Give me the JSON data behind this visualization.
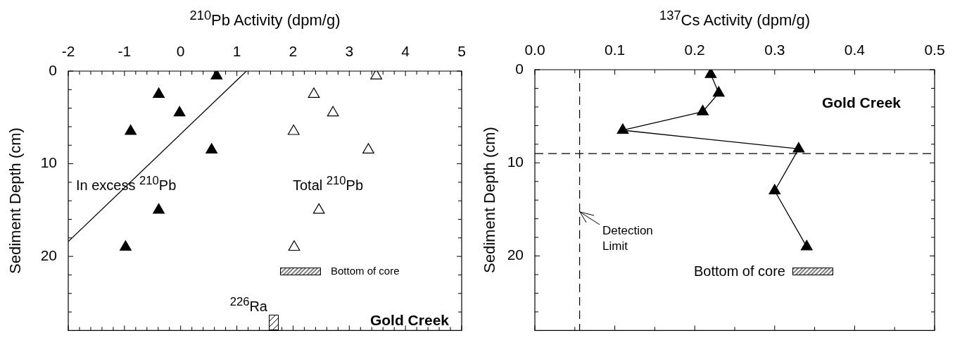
{
  "chart_data": [
    {
      "type": "scatter",
      "xlabel": "$^{210}$Pb Activity (dpm/g)",
      "ylabel": "Sediment Depth (cm)",
      "xlim": [
        -2,
        5
      ],
      "ylim": [
        28,
        0
      ],
      "marker": "triangle",
      "xticks": [
        -2,
        {
          "value": -1.8,
          "label": null
        },
        {
          "value": -1.6,
          "label": null
        },
        {
          "value": -1.4,
          "label": null
        },
        {
          "value": -1.2,
          "label": null
        },
        -1,
        {
          "value": -0.8,
          "label": null
        },
        {
          "value": -0.6,
          "label": null
        },
        {
          "value": -0.4,
          "label": null
        },
        {
          "value": -0.2,
          "label": null
        },
        0,
        {
          "value": 0.2,
          "label": null
        },
        {
          "value": 0.4,
          "label": null
        },
        {
          "value": 0.6,
          "label": null
        },
        {
          "value": 0.8,
          "label": null
        },
        1,
        {
          "value": 1.2,
          "label": null
        },
        {
          "value": 1.4,
          "label": null
        },
        {
          "value": 1.6,
          "label": null
        },
        {
          "value": 1.8,
          "label": null
        },
        2,
        {
          "value": 2.2,
          "label": null
        },
        {
          "value": 2.4,
          "label": null
        },
        {
          "value": 2.6,
          "label": null
        },
        {
          "value": 2.8,
          "label": null
        },
        3,
        {
          "value": 3.2,
          "label": null
        },
        {
          "value": 3.4,
          "label": null
        },
        {
          "value": 3.6,
          "label": null
        },
        {
          "value": 3.8,
          "label": null
        },
        4,
        {
          "value": 4.2,
          "label": null
        },
        {
          "value": 4.4,
          "label": null
        },
        {
          "value": 4.6,
          "label": null
        },
        {
          "value": 4.8,
          "label": null
        },
        5
      ],
      "yticks": [
        0,
        {
          "value": 2,
          "label": null
        },
        {
          "value": 4,
          "label": null
        },
        {
          "value": 6,
          "label": null
        },
        {
          "value": 8,
          "label": null
        },
        10,
        {
          "value": 12,
          "label": null
        },
        {
          "value": 14,
          "label": null
        },
        {
          "value": 16,
          "label": null
        },
        {
          "value": 18,
          "label": null
        },
        20,
        {
          "value": 22,
          "label": null
        },
        {
          "value": 24,
          "label": null
        },
        {
          "value": 26,
          "label": null
        }
      ],
      "series": [
        {
          "name": "In excess $^{210}$Pb",
          "color": "#000000",
          "x": [
            0.64,
            -0.39,
            -0.02,
            -0.89,
            0.55,
            -0.39,
            -0.98
          ],
          "values": [
            0.5,
            2.5,
            4.5,
            6.5,
            8.5,
            15,
            19
          ]
        },
        {
          "name": "Total $^{210}$Pb",
          "color": "#ffffff",
          "x": [
            3.48,
            2.37,
            2.71,
            2.01,
            3.34,
            2.46,
            2.02
          ],
          "values": [
            0.5,
            2.5,
            4.5,
            6.5,
            8.5,
            15,
            19
          ]
        },
        {
          "type": "line",
          "color": "#000000",
          "marker": "none",
          "x": [
            1.17,
            -2
          ],
          "values": [
            0,
            18.4
          ]
        }
      ],
      "annotations": [
        "Bottom of core",
        "$^{226}$Ra",
        "Gold Creek"
      ]
    },
    {
      "type": "line",
      "xlabel": "$^{137}$Cs Activity (dpm/g)",
      "ylabel": "Sediment Depth (cm)",
      "xlim": [
        0,
        0.5
      ],
      "ylim": [
        28,
        0
      ],
      "marker": "triangle",
      "xticks": [
        {
          "value": 0,
          "label": "0.0"
        },
        {
          "value": 0.05,
          "label": null
        },
        0.1,
        {
          "value": 0.15,
          "label": null
        },
        0.2,
        {
          "value": 0.25,
          "label": null
        },
        0.3,
        {
          "value": 0.35,
          "label": null
        },
        0.4,
        {
          "value": 0.45,
          "label": null
        },
        0.5
      ],
      "yticks": [
        0,
        {
          "value": 2,
          "label": null
        },
        {
          "value": 4,
          "label": null
        },
        {
          "value": 6,
          "label": null
        },
        {
          "value": 8,
          "label": null
        },
        10,
        {
          "value": 12,
          "label": null
        },
        {
          "value": 14,
          "label": null
        },
        {
          "value": 16,
          "label": null
        },
        {
          "value": 18,
          "label": null
        },
        20,
        {
          "value": 22,
          "label": null
        },
        {
          "value": 24,
          "label": null
        },
        {
          "value": 26,
          "label": null
        }
      ],
      "series": [
        {
          "color": "#000000",
          "x": [
            0.22,
            0.23,
            0.21,
            0.11,
            0.33,
            0.3,
            0.34
          ],
          "values": [
            0.5,
            2.5,
            4.5,
            6.5,
            8.5,
            13,
            19
          ]
        }
      ],
      "ref_lines": [
        {
          "axis": "y",
          "value": 9,
          "line_style": "dashed"
        },
        {
          "axis": "x",
          "value": 0.056,
          "line_style": "dashed"
        }
      ],
      "annotations": [
        "Detection\nLimit",
        "Bottom of core",
        "Gold Creek"
      ]
    }
  ]
}
